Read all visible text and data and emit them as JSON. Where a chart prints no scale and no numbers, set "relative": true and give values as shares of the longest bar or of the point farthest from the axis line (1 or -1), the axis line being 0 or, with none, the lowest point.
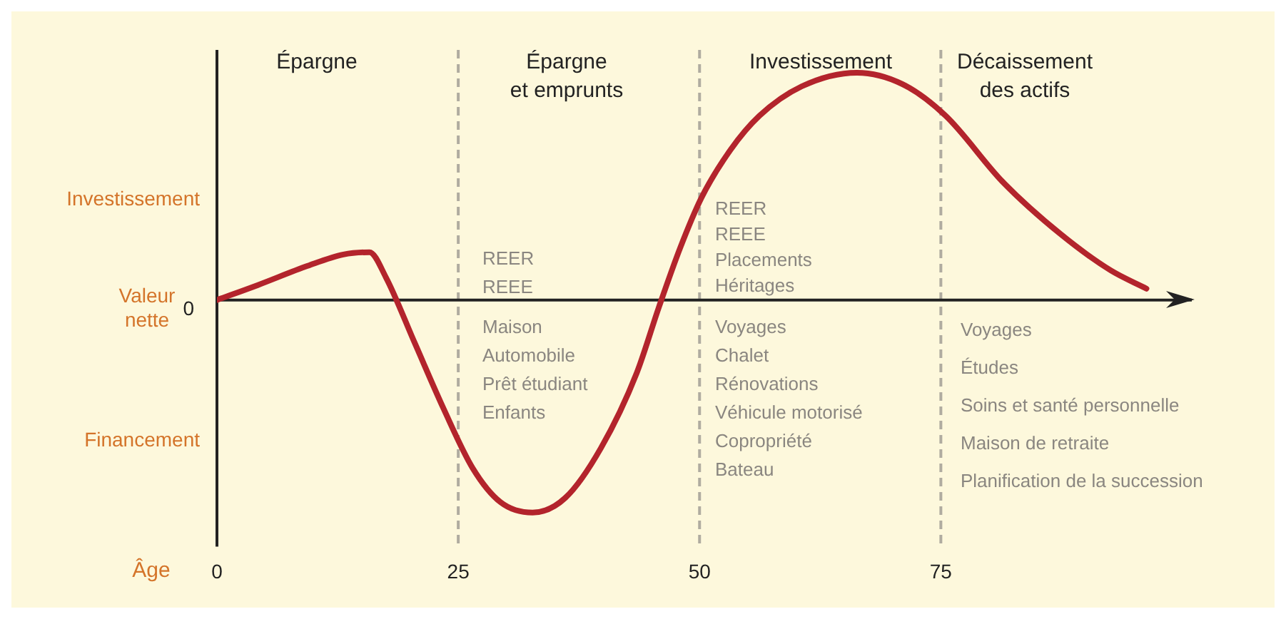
{
  "chart_data": {
    "type": "line",
    "relative": true,
    "xlabel": "Âge",
    "xlim": [
      0,
      101
    ],
    "xticks": [
      0,
      25,
      50,
      75
    ],
    "marker": "none",
    "line_style": "solid",
    "x": [
      0,
      4.2,
      9.4,
      13.1,
      15.8,
      17.5,
      20.5,
      23.5,
      26.5,
      29.4,
      32.7,
      36.1,
      39.8,
      43.5,
      45.8,
      48,
      50.2,
      53.2,
      56.2,
      60.6,
      66.3,
      71,
      75.5,
      81.4,
      87.4,
      92.6,
      96.3
    ],
    "series": [
      {
        "color": "#b3242c",
        "values": [
          0,
          0.065,
          0.15,
          0.2,
          0.21,
          0.1,
          -0.19,
          -0.48,
          -0.74,
          -0.89,
          -0.935,
          -0.87,
          -0.65,
          -0.32,
          -0.03,
          0.23,
          0.45,
          0.66,
          0.81,
          0.94,
          1,
          0.95,
          0.81,
          0.52,
          0.29,
          0.13,
          0.05
        ]
      }
    ],
    "ref_lines": [
      {
        "axis": "x",
        "value": 25,
        "color": "#b0aca0",
        "line_style": "dashed"
      },
      {
        "axis": "x",
        "value": 50,
        "color": "#b0aca0",
        "line_style": "dashed"
      },
      {
        "axis": "x",
        "value": 75,
        "color": "#b0aca0",
        "line_style": "dashed"
      }
    ],
    "annotations": [
      "Investissement",
      "Valeur\nnette",
      "0",
      "Financement",
      "REER\nREEE",
      "Maison\nAutomobile\nPrêt étudiant\nEnfants",
      "REER\nREEE\nPlacements\nHéritages",
      "Voyages\nChalet\nRénovations\nVéhicule motorisé\nCopropriété\nBateau",
      "Voyages\nÉtudes\nSoins et santé personnelle\nMaison de retraite\nPlanification de la succession",
      "Épargne",
      "Épargne\net emprunts",
      "Investissement",
      "Décaissement\ndes actifs"
    ]
  }
}
